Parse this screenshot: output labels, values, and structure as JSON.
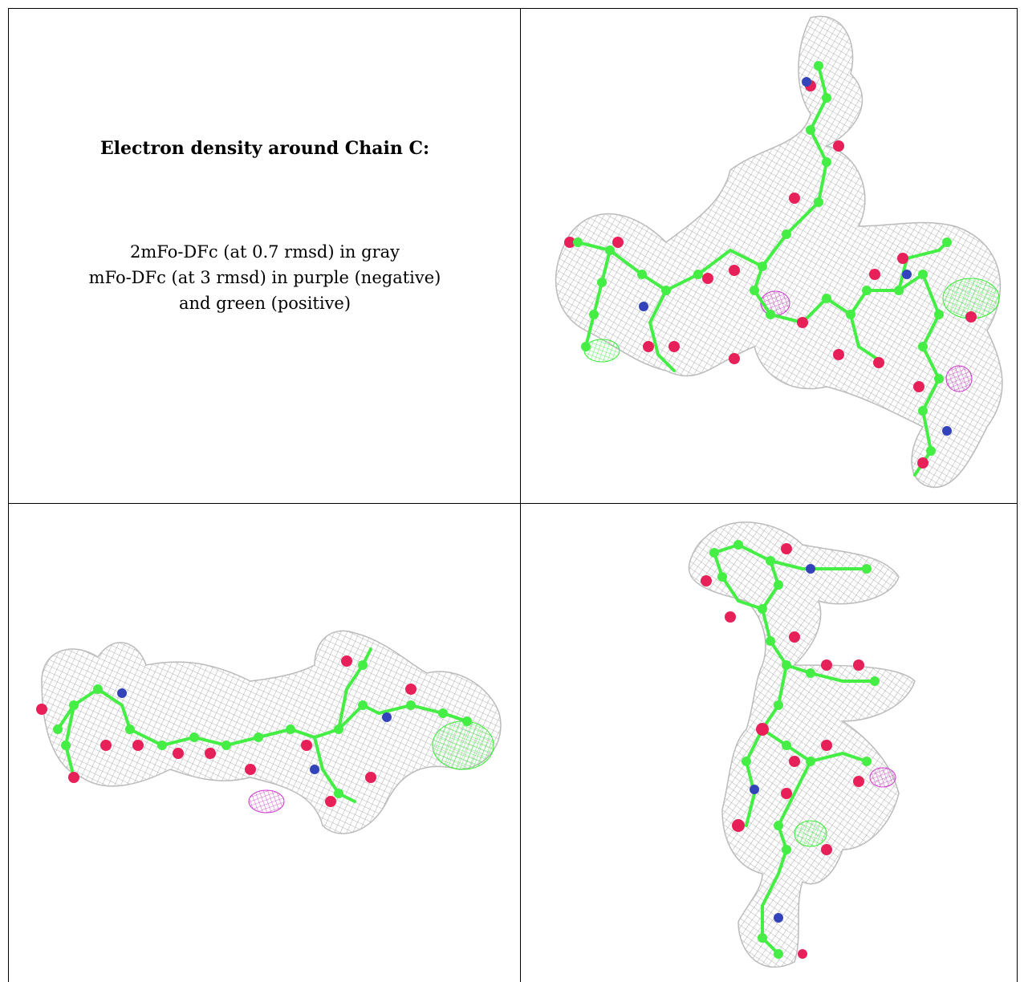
{
  "legend": {
    "title": "Electron density around Chain C:",
    "line1": "2mFo-DFc (at 0.7 rmsd) in gray",
    "line2": "mFo-DFc (at 3 rmsd) in purple (negative)",
    "line3": "and green (positive)"
  },
  "colors": {
    "mesh_2fofc": "#9a9a9a",
    "mesh_negative": "#cc33cc",
    "mesh_positive": "#33ee33",
    "carbon_atom": "#44ee44",
    "oxygen_atom": "#e8205a",
    "nitrogen_atom": "#3344bb"
  },
  "panels": [
    {
      "name": "density-view-top-right"
    },
    {
      "name": "density-view-bottom-left"
    },
    {
      "name": "density-view-bottom-right"
    }
  ]
}
